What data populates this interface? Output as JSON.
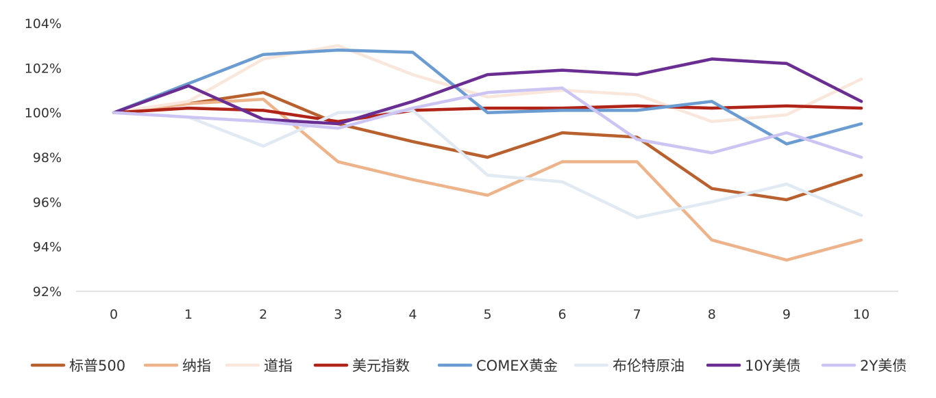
{
  "chart_data": {
    "type": "line",
    "title": "",
    "xlabel": "",
    "ylabel": "",
    "x": [
      0,
      1,
      2,
      3,
      4,
      5,
      6,
      7,
      8,
      9,
      10
    ],
    "xticks": [
      "0",
      "1",
      "2",
      "3",
      "4",
      "5",
      "6",
      "7",
      "8",
      "9",
      "10"
    ],
    "ylim": [
      92,
      104
    ],
    "yticks": [
      92,
      94,
      96,
      98,
      100,
      102,
      104
    ],
    "ytick_labels": [
      "92%",
      "94%",
      "96%",
      "98%",
      "100%",
      "102%",
      "104%"
    ],
    "grid": "none",
    "legend_position": "bottom",
    "series": [
      {
        "name": "标普500",
        "color": "#B8612F",
        "values": [
          100.0,
          100.4,
          100.9,
          99.5,
          98.7,
          98.0,
          99.1,
          98.9,
          96.6,
          96.1,
          97.2
        ]
      },
      {
        "name": "纳指",
        "color": "#EDB48C",
        "values": [
          100.0,
          100.4,
          100.6,
          97.8,
          97.0,
          96.3,
          97.8,
          97.8,
          94.3,
          93.4,
          94.3
        ]
      },
      {
        "name": "道指",
        "color": "#F9E7DC",
        "values": [
          100.0,
          100.5,
          102.4,
          103.0,
          101.7,
          100.7,
          101.0,
          100.8,
          99.6,
          99.9,
          101.5
        ]
      },
      {
        "name": "美元指数",
        "color": "#B02418",
        "values": [
          100.0,
          100.2,
          100.1,
          99.6,
          100.1,
          100.2,
          100.2,
          100.3,
          100.2,
          100.3,
          100.2
        ]
      },
      {
        "name": "COMEX黄金",
        "color": "#6A9BD1",
        "values": [
          100.0,
          101.3,
          102.6,
          102.8,
          102.7,
          100.0,
          100.1,
          100.1,
          100.5,
          98.6,
          99.5
        ]
      },
      {
        "name": "布伦特原油",
        "color": "#E1EAF3",
        "values": [
          100.0,
          99.8,
          98.5,
          100.0,
          100.1,
          97.2,
          96.9,
          95.3,
          96.0,
          96.8,
          95.4
        ]
      },
      {
        "name": "10Y美债",
        "color": "#6A2D91",
        "values": [
          100.0,
          101.2,
          99.7,
          99.5,
          100.5,
          101.7,
          101.9,
          101.7,
          102.4,
          102.2,
          100.5
        ]
      },
      {
        "name": "2Y美债",
        "color": "#CCC5F3",
        "values": [
          100.0,
          99.8,
          99.6,
          99.3,
          100.2,
          100.9,
          101.1,
          98.8,
          98.2,
          99.1,
          98.0
        ]
      }
    ]
  }
}
